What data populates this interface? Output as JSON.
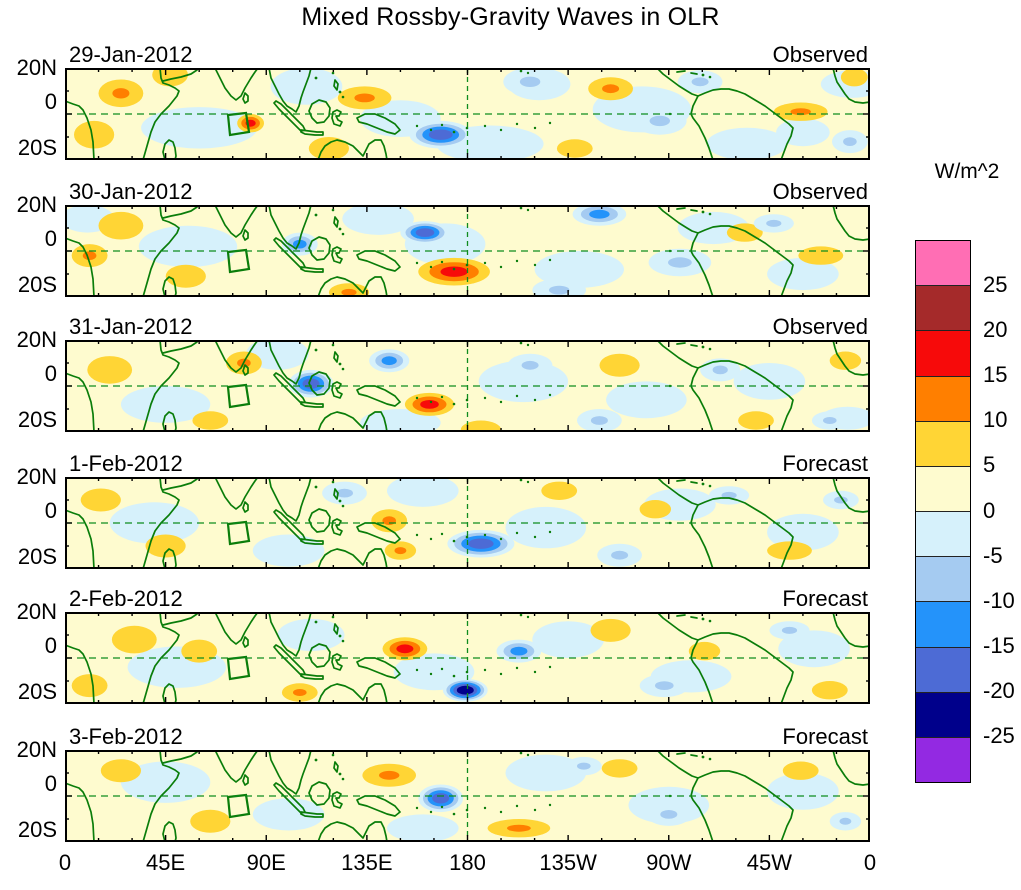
{
  "title": "Mixed Rossby-Gravity Waves in OLR",
  "colorbar": {
    "unit_label": "W/m^2",
    "tick_labels": [
      "25",
      "20",
      "15",
      "10",
      "5",
      "0",
      "-5",
      "-10",
      "-15",
      "-20",
      "-25"
    ],
    "colors_top_to_bottom": [
      "#FF6EB4",
      "#A52A2A",
      "#F70A0A",
      "#FF7F00",
      "#FFD535",
      "#FEFBCF",
      "#D6F1FB",
      "#A5CBF1",
      "#2493FA",
      "#4D6BD5",
      "#00008B",
      "#9329E2"
    ]
  },
  "axes": {
    "x_tick_labels": [
      "0",
      "45E",
      "90E",
      "135E",
      "180",
      "135W",
      "90W",
      "45W",
      "0"
    ],
    "y_tick_labels": [
      "20N",
      "0",
      "20S"
    ]
  },
  "map_colors": {
    "coastline": "#0A7D0A",
    "dashed_lines": "#0E8C1E",
    "background_band_0_to_5": "#FEFBCF"
  },
  "chart_data": {
    "type": "heatmap",
    "subtype": "filled_contour_longitude_latitude_maps",
    "units": "W/m^2",
    "lon_range": [
      0,
      360
    ],
    "lat_range": [
      -20,
      20
    ],
    "contour_levels": [
      -25,
      -20,
      -15,
      -10,
      -5,
      0,
      5,
      10,
      15,
      20,
      25
    ],
    "legend_position": "right",
    "anomaly_format": "[lon_deg_E, lat_deg_N, lon_radius_deg, lat_radius_deg, peak_W_per_m2]",
    "panels": [
      {
        "date": "29-Jan-2012",
        "source": "Observed",
        "anomalies": [
          [
            60,
            -6,
            26,
            9,
            -4
          ],
          [
            108,
            12,
            16,
            8,
            -4
          ],
          [
            150,
            -2,
            18,
            8,
            -4
          ],
          [
            190,
            -13,
            24,
            8,
            -4
          ],
          [
            212,
            13,
            14,
            7,
            -4
          ],
          [
            258,
            2,
            22,
            10,
            -4
          ],
          [
            305,
            -13,
            18,
            7,
            -4
          ],
          [
            352,
            13,
            14,
            6,
            -4
          ],
          [
            330,
            -8,
            12,
            6,
            -4
          ],
          [
            25,
            9,
            10,
            6,
            12
          ],
          [
            47,
            17,
            8,
            5,
            8
          ],
          [
            13,
            -9,
            9,
            6,
            8
          ],
          [
            83,
            -4,
            6,
            4,
            16
          ],
          [
            134,
            7,
            12,
            5,
            14
          ],
          [
            118,
            -15,
            9,
            5,
            9
          ],
          [
            168,
            -9,
            14,
            6,
            -17
          ],
          [
            208,
            14,
            12,
            6,
            -8
          ],
          [
            244,
            11,
            10,
            5,
            13
          ],
          [
            228,
            -15,
            8,
            4,
            7
          ],
          [
            266,
            -3,
            12,
            6,
            -7
          ],
          [
            284,
            14,
            10,
            5,
            -6
          ],
          [
            329,
            1,
            12,
            4,
            15
          ],
          [
            353,
            16,
            6,
            4,
            8
          ],
          [
            351,
            -12,
            8,
            5,
            -7
          ]
        ]
      },
      {
        "date": "30-Jan-2012",
        "source": "Observed",
        "anomalies": [
          [
            55,
            2,
            22,
            9,
            -4
          ],
          [
            140,
            14,
            16,
            7,
            -4
          ],
          [
            170,
            3,
            18,
            9,
            -4
          ],
          [
            230,
            -8,
            20,
            8,
            -4
          ],
          [
            290,
            10,
            16,
            7,
            -4
          ],
          [
            330,
            -10,
            16,
            7,
            -4
          ],
          [
            10,
            14,
            12,
            6,
            -4
          ],
          [
            25,
            11,
            10,
            6,
            9
          ],
          [
            11,
            -2,
            8,
            5,
            12
          ],
          [
            54,
            -11,
            9,
            5,
            8
          ],
          [
            105,
            3,
            8,
            5,
            -12
          ],
          [
            161,
            8,
            11,
            5,
            -18
          ],
          [
            174,
            -9,
            16,
            6,
            19
          ],
          [
            127,
            -18,
            9,
            4,
            13
          ],
          [
            239,
            16,
            12,
            5,
            -13
          ],
          [
            221,
            -17,
            12,
            5,
            -6
          ],
          [
            275,
            -5,
            14,
            6,
            -7
          ],
          [
            304,
            8,
            8,
            4,
            7
          ],
          [
            317,
            12,
            9,
            4,
            -8
          ],
          [
            338,
            -2,
            10,
            4,
            9
          ]
        ]
      },
      {
        "date": "31-Jan-2012",
        "source": "Observed",
        "anomalies": [
          [
            45,
            -8,
            20,
            8,
            -4
          ],
          [
            95,
            14,
            14,
            7,
            -4
          ],
          [
            150,
            -16,
            18,
            6,
            -4
          ],
          [
            205,
            2,
            20,
            9,
            -4
          ],
          [
            260,
            -6,
            18,
            8,
            -4
          ],
          [
            315,
            2,
            16,
            8,
            -4
          ],
          [
            350,
            -14,
            12,
            5,
            -4
          ],
          [
            20,
            7,
            10,
            6,
            8
          ],
          [
            80,
            10,
            8,
            5,
            12
          ],
          [
            65,
            -15,
            8,
            4,
            8
          ],
          [
            110,
            1,
            10,
            6,
            -19
          ],
          [
            145,
            11,
            9,
            5,
            -13
          ],
          [
            163,
            -8,
            11,
            5,
            18
          ],
          [
            186,
            -19,
            9,
            4,
            8
          ],
          [
            208,
            9,
            10,
            5,
            -8
          ],
          [
            248,
            9,
            9,
            5,
            8
          ],
          [
            239,
            -15,
            10,
            5,
            -7
          ],
          [
            293,
            7,
            9,
            5,
            -9
          ],
          [
            309,
            -15,
            8,
            4,
            9
          ],
          [
            349,
            11,
            7,
            4,
            8
          ],
          [
            342,
            -15,
            8,
            4,
            -7
          ]
        ]
      },
      {
        "date": "1-Feb-2012",
        "source": "Forecast",
        "anomalies": [
          [
            40,
            0,
            20,
            9,
            -4
          ],
          [
            100,
            -12,
            16,
            7,
            -4
          ],
          [
            160,
            14,
            16,
            7,
            -4
          ],
          [
            215,
            -2,
            18,
            9,
            -4
          ],
          [
            275,
            8,
            16,
            7,
            -4
          ],
          [
            330,
            -4,
            16,
            8,
            -4
          ],
          [
            16,
            10,
            9,
            5,
            8
          ],
          [
            45,
            -10,
            9,
            5,
            7
          ],
          [
            125,
            13,
            10,
            5,
            -9
          ],
          [
            145,
            1,
            8,
            5,
            14
          ],
          [
            150,
            -12,
            7,
            4,
            13
          ],
          [
            186,
            -9,
            15,
            6,
            -19
          ],
          [
            221,
            14,
            8,
            4,
            7
          ],
          [
            264,
            6,
            7,
            4,
            10
          ],
          [
            248,
            -14,
            10,
            5,
            -7
          ],
          [
            297,
            12,
            9,
            4,
            -8
          ],
          [
            324,
            -12,
            10,
            4,
            8
          ],
          [
            347,
            10,
            8,
            4,
            -7
          ]
        ]
      },
      {
        "date": "2-Feb-2012",
        "source": "Forecast",
        "anomalies": [
          [
            50,
            -4,
            22,
            9,
            -4
          ],
          [
            110,
            10,
            15,
            7,
            -4
          ],
          [
            165,
            -6,
            18,
            8,
            -4
          ],
          [
            225,
            8,
            16,
            8,
            -4
          ],
          [
            280,
            -8,
            18,
            7,
            -4
          ],
          [
            335,
            4,
            16,
            8,
            -4
          ],
          [
            31,
            8,
            10,
            6,
            8
          ],
          [
            11,
            -12,
            8,
            5,
            8
          ],
          [
            60,
            3,
            8,
            5,
            7
          ],
          [
            105,
            -15,
            8,
            4,
            12
          ],
          [
            152,
            4,
            10,
            5,
            17
          ],
          [
            179,
            -14,
            10,
            5,
            -21
          ],
          [
            203,
            3,
            10,
            5,
            -13
          ],
          [
            244,
            12,
            9,
            5,
            8
          ],
          [
            268,
            -12,
            11,
            5,
            -7
          ],
          [
            286,
            3,
            7,
            4,
            7
          ],
          [
            324,
            12,
            9,
            4,
            -8
          ],
          [
            342,
            -14,
            8,
            4,
            7
          ]
        ]
      },
      {
        "date": "3-Feb-2012",
        "source": "Forecast",
        "anomalies": [
          [
            45,
            6,
            20,
            9,
            -4
          ],
          [
            100,
            -8,
            16,
            7,
            -4
          ],
          [
            160,
            -14,
            16,
            6,
            -4
          ],
          [
            215,
            10,
            18,
            8,
            -4
          ],
          [
            270,
            -4,
            18,
            8,
            -4
          ],
          [
            330,
            2,
            16,
            8,
            -4
          ],
          [
            25,
            11,
            9,
            5,
            8
          ],
          [
            65,
            -11,
            9,
            5,
            7
          ],
          [
            145,
            9,
            12,
            5,
            15
          ],
          [
            168,
            -1,
            10,
            6,
            -16
          ],
          [
            203,
            -14,
            14,
            4,
            14
          ],
          [
            232,
            13,
            8,
            4,
            -9
          ],
          [
            248,
            12,
            8,
            4,
            8
          ],
          [
            270,
            -8,
            10,
            5,
            -6
          ],
          [
            329,
            11,
            8,
            4,
            7
          ],
          [
            349,
            -11,
            7,
            4,
            -8
          ]
        ]
      }
    ]
  }
}
